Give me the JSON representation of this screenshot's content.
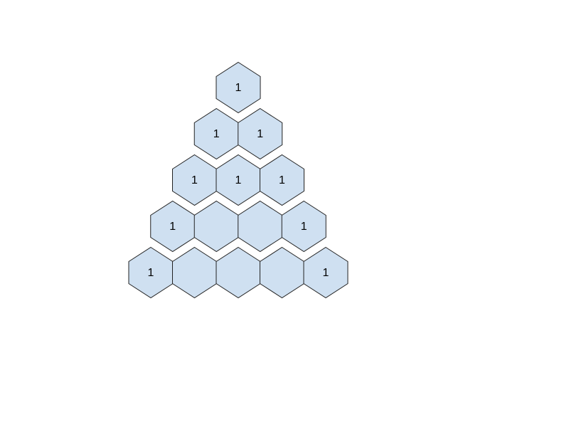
{
  "colors": {
    "hex_fill": "#cfe0f1",
    "hex_stroke": "#222222",
    "label": "#000000"
  },
  "rows": [
    [
      "1"
    ],
    [
      "1",
      "1"
    ],
    [
      "1",
      "1",
      "1"
    ],
    [
      "1",
      "",
      "",
      "1"
    ],
    [
      "1",
      "",
      "",
      "",
      "1"
    ]
  ]
}
